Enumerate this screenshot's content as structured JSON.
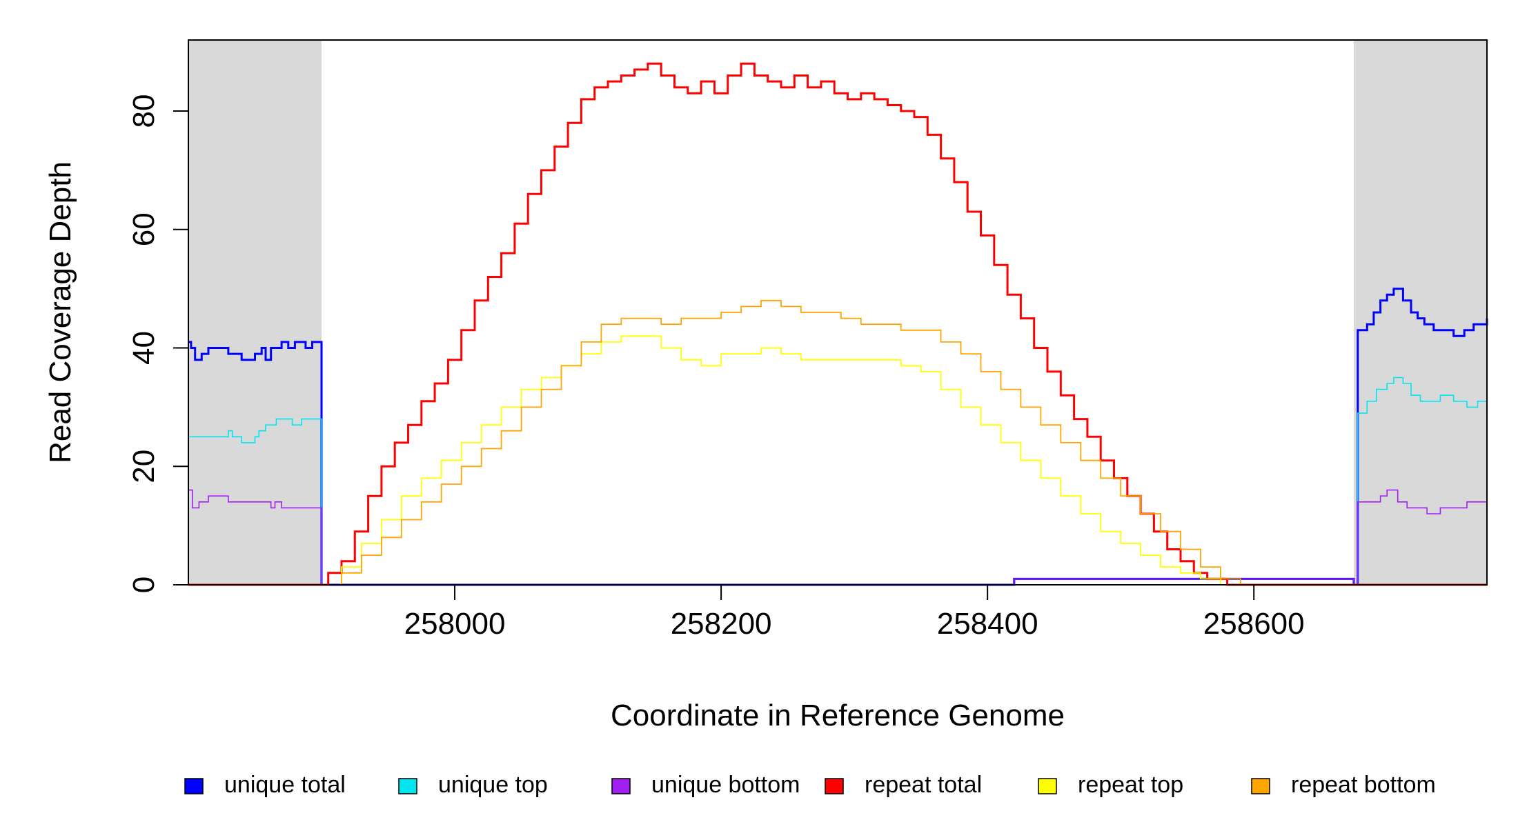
{
  "chart_data": {
    "type": "line",
    "title": "",
    "xlabel": "Coordinate in Reference Genome",
    "ylabel": "Read Coverage Depth",
    "xlim": [
      257800,
      258775
    ],
    "ylim": [
      0,
      92
    ],
    "x_ticks": [
      258000,
      258200,
      258400,
      258600
    ],
    "x_tick_labels": [
      "258000",
      "258200",
      "258400",
      "258600"
    ],
    "y_ticks": [
      0,
      20,
      40,
      60,
      80
    ],
    "y_tick_labels": [
      "0",
      "20",
      "40",
      "60",
      "80"
    ],
    "shaded_regions": [
      [
        257800,
        257900
      ],
      [
        258675,
        258775
      ]
    ],
    "shaded_color": "#d9d9d9",
    "legend_position": "bottom",
    "series": [
      {
        "name": "unique total",
        "color": "#0000ff",
        "width": 3,
        "points": [
          [
            257800,
            41
          ],
          [
            257802,
            40
          ],
          [
            257805,
            38
          ],
          [
            257810,
            39
          ],
          [
            257815,
            40
          ],
          [
            257830,
            39
          ],
          [
            257840,
            38
          ],
          [
            257850,
            39
          ],
          [
            257855,
            40
          ],
          [
            257858,
            38
          ],
          [
            257862,
            40
          ],
          [
            257870,
            41
          ],
          [
            257875,
            40
          ],
          [
            257880,
            41
          ],
          [
            257888,
            40
          ],
          [
            257893,
            41
          ],
          [
            257899.5,
            41
          ],
          [
            257900,
            0
          ],
          [
            258420,
            0
          ],
          [
            258420,
            1
          ],
          [
            258675,
            1
          ],
          [
            258675,
            0
          ],
          [
            258678,
            43
          ],
          [
            258685,
            44
          ],
          [
            258690,
            46
          ],
          [
            258695,
            48
          ],
          [
            258700,
            49
          ],
          [
            258705,
            50
          ],
          [
            258712,
            48
          ],
          [
            258718,
            46
          ],
          [
            258723,
            45
          ],
          [
            258728,
            44
          ],
          [
            258735,
            43
          ],
          [
            258745,
            43
          ],
          [
            258750,
            42
          ],
          [
            258758,
            43
          ],
          [
            258765,
            44
          ],
          [
            258775,
            45
          ]
        ]
      },
      {
        "name": "unique top",
        "color": "#00e5ee",
        "width": 1.6,
        "points": [
          [
            257800,
            25
          ],
          [
            257828,
            25
          ],
          [
            257830,
            26
          ],
          [
            257833,
            25
          ],
          [
            257840,
            24
          ],
          [
            257850,
            25
          ],
          [
            257853,
            26
          ],
          [
            257858,
            27
          ],
          [
            257866,
            28
          ],
          [
            257878,
            27
          ],
          [
            257885,
            28
          ],
          [
            257899.5,
            28
          ],
          [
            257900,
            0
          ],
          [
            258675,
            0
          ],
          [
            258678,
            29
          ],
          [
            258685,
            31
          ],
          [
            258692,
            33
          ],
          [
            258700,
            34
          ],
          [
            258705,
            35
          ],
          [
            258712,
            34
          ],
          [
            258718,
            32
          ],
          [
            258725,
            31
          ],
          [
            258740,
            32
          ],
          [
            258750,
            31
          ],
          [
            258760,
            30
          ],
          [
            258768,
            31
          ],
          [
            258775,
            31
          ]
        ]
      },
      {
        "name": "unique bottom",
        "color": "#a020f0",
        "width": 1.6,
        "points": [
          [
            257800,
            16
          ],
          [
            257803,
            13
          ],
          [
            257808,
            14
          ],
          [
            257815,
            15
          ],
          [
            257830,
            14
          ],
          [
            257860,
            14
          ],
          [
            257862,
            13
          ],
          [
            257865,
            14
          ],
          [
            257870,
            13
          ],
          [
            257899.5,
            13
          ],
          [
            257900,
            0
          ],
          [
            258420,
            0
          ],
          [
            258420,
            1
          ],
          [
            258675,
            1
          ],
          [
            258675,
            0
          ],
          [
            258678,
            14
          ],
          [
            258690,
            14
          ],
          [
            258695,
            15
          ],
          [
            258700,
            16
          ],
          [
            258708,
            14
          ],
          [
            258715,
            13
          ],
          [
            258722,
            13
          ],
          [
            258730,
            12
          ],
          [
            258740,
            13
          ],
          [
            258760,
            14
          ],
          [
            258775,
            14
          ]
        ]
      },
      {
        "name": "repeat total",
        "color": "#ff0000",
        "width": 3,
        "points": [
          [
            257800,
            0
          ],
          [
            257900,
            0
          ],
          [
            257905,
            2
          ],
          [
            257915,
            4
          ],
          [
            257925,
            9
          ],
          [
            257935,
            15
          ],
          [
            257945,
            20
          ],
          [
            257955,
            24
          ],
          [
            257965,
            27
          ],
          [
            257975,
            31
          ],
          [
            257985,
            34
          ],
          [
            257995,
            38
          ],
          [
            258005,
            43
          ],
          [
            258015,
            48
          ],
          [
            258025,
            52
          ],
          [
            258035,
            56
          ],
          [
            258045,
            61
          ],
          [
            258055,
            66
          ],
          [
            258065,
            70
          ],
          [
            258075,
            74
          ],
          [
            258085,
            78
          ],
          [
            258095,
            82
          ],
          [
            258105,
            84
          ],
          [
            258115,
            85
          ],
          [
            258125,
            86
          ],
          [
            258135,
            87
          ],
          [
            258145,
            88
          ],
          [
            258155,
            86
          ],
          [
            258165,
            84
          ],
          [
            258175,
            83
          ],
          [
            258185,
            85
          ],
          [
            258195,
            83
          ],
          [
            258205,
            86
          ],
          [
            258215,
            88
          ],
          [
            258225,
            86
          ],
          [
            258235,
            85
          ],
          [
            258245,
            84
          ],
          [
            258255,
            86
          ],
          [
            258265,
            84
          ],
          [
            258275,
            85
          ],
          [
            258285,
            83
          ],
          [
            258295,
            82
          ],
          [
            258305,
            83
          ],
          [
            258315,
            82
          ],
          [
            258325,
            81
          ],
          [
            258335,
            80
          ],
          [
            258345,
            79
          ],
          [
            258355,
            76
          ],
          [
            258365,
            72
          ],
          [
            258375,
            68
          ],
          [
            258385,
            63
          ],
          [
            258395,
            59
          ],
          [
            258405,
            54
          ],
          [
            258415,
            49
          ],
          [
            258425,
            45
          ],
          [
            258435,
            40
          ],
          [
            258445,
            36
          ],
          [
            258455,
            32
          ],
          [
            258465,
            28
          ],
          [
            258475,
            25
          ],
          [
            258485,
            21
          ],
          [
            258495,
            18
          ],
          [
            258505,
            15
          ],
          [
            258515,
            12
          ],
          [
            258525,
            9
          ],
          [
            258535,
            6
          ],
          [
            258545,
            4
          ],
          [
            258555,
            2
          ],
          [
            258565,
            1
          ],
          [
            258580,
            0
          ],
          [
            258775,
            0
          ]
        ]
      },
      {
        "name": "repeat top",
        "color": "#ffff00",
        "width": 1.8,
        "points": [
          [
            257800,
            0
          ],
          [
            257900,
            0
          ],
          [
            257915,
            3
          ],
          [
            257930,
            7
          ],
          [
            257945,
            11
          ],
          [
            257960,
            15
          ],
          [
            257975,
            18
          ],
          [
            257990,
            21
          ],
          [
            258005,
            24
          ],
          [
            258020,
            27
          ],
          [
            258035,
            30
          ],
          [
            258050,
            33
          ],
          [
            258065,
            35
          ],
          [
            258080,
            37
          ],
          [
            258095,
            39
          ],
          [
            258110,
            41
          ],
          [
            258125,
            42
          ],
          [
            258140,
            42
          ],
          [
            258155,
            40
          ],
          [
            258170,
            38
          ],
          [
            258185,
            37
          ],
          [
            258200,
            39
          ],
          [
            258215,
            39
          ],
          [
            258230,
            40
          ],
          [
            258245,
            39
          ],
          [
            258260,
            38
          ],
          [
            258275,
            38
          ],
          [
            258290,
            38
          ],
          [
            258305,
            38
          ],
          [
            258320,
            38
          ],
          [
            258335,
            37
          ],
          [
            258350,
            36
          ],
          [
            258365,
            33
          ],
          [
            258380,
            30
          ],
          [
            258395,
            27
          ],
          [
            258410,
            24
          ],
          [
            258425,
            21
          ],
          [
            258440,
            18
          ],
          [
            258455,
            15
          ],
          [
            258470,
            12
          ],
          [
            258485,
            9
          ],
          [
            258500,
            7
          ],
          [
            258515,
            5
          ],
          [
            258530,
            3
          ],
          [
            258545,
            2
          ],
          [
            258560,
            1
          ],
          [
            258575,
            0
          ],
          [
            258775,
            0
          ]
        ]
      },
      {
        "name": "repeat bottom",
        "color": "#ffa500",
        "width": 1.8,
        "points": [
          [
            257800,
            0
          ],
          [
            257900,
            0
          ],
          [
            257915,
            2
          ],
          [
            257930,
            5
          ],
          [
            257945,
            8
          ],
          [
            257960,
            11
          ],
          [
            257975,
            14
          ],
          [
            257990,
            17
          ],
          [
            258005,
            20
          ],
          [
            258020,
            23
          ],
          [
            258035,
            26
          ],
          [
            258050,
            30
          ],
          [
            258065,
            33
          ],
          [
            258080,
            37
          ],
          [
            258095,
            41
          ],
          [
            258110,
            44
          ],
          [
            258125,
            45
          ],
          [
            258140,
            45
          ],
          [
            258155,
            44
          ],
          [
            258170,
            45
          ],
          [
            258185,
            45
          ],
          [
            258200,
            46
          ],
          [
            258215,
            47
          ],
          [
            258230,
            48
          ],
          [
            258245,
            47
          ],
          [
            258260,
            46
          ],
          [
            258275,
            46
          ],
          [
            258290,
            45
          ],
          [
            258305,
            44
          ],
          [
            258320,
            44
          ],
          [
            258335,
            43
          ],
          [
            258350,
            43
          ],
          [
            258365,
            41
          ],
          [
            258380,
            39
          ],
          [
            258395,
            36
          ],
          [
            258410,
            33
          ],
          [
            258425,
            30
          ],
          [
            258440,
            27
          ],
          [
            258455,
            24
          ],
          [
            258470,
            21
          ],
          [
            258485,
            18
          ],
          [
            258500,
            15
          ],
          [
            258515,
            12
          ],
          [
            258530,
            9
          ],
          [
            258545,
            6
          ],
          [
            258560,
            3
          ],
          [
            258575,
            1
          ],
          [
            258590,
            0
          ],
          [
            258775,
            0
          ]
        ]
      }
    ]
  }
}
